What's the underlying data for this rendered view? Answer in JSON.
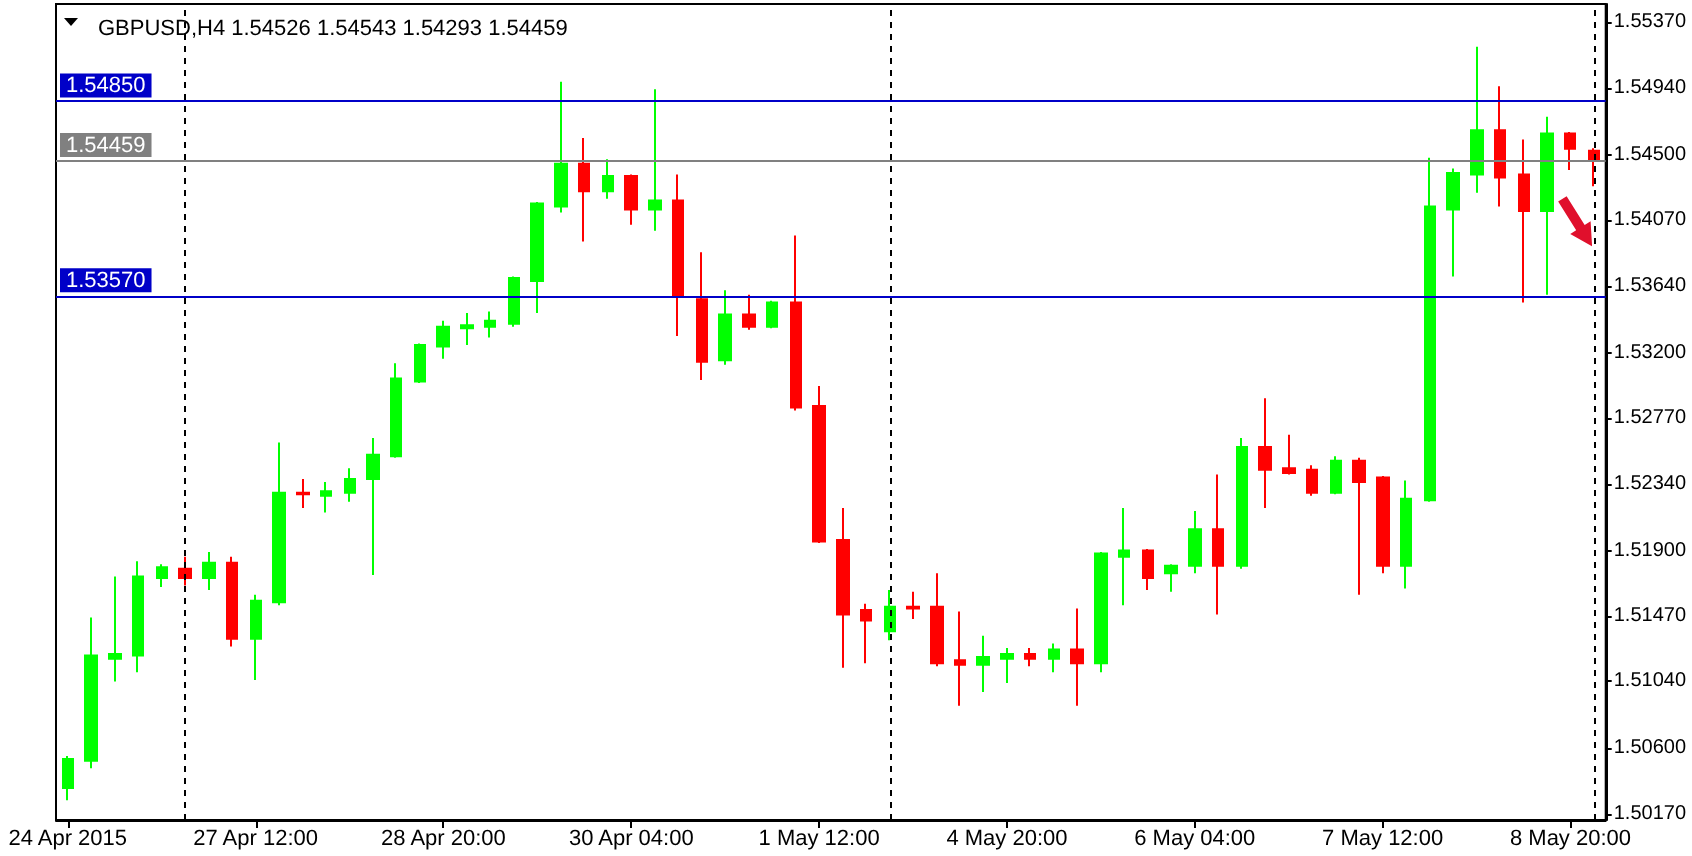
{
  "chart_data": {
    "type": "candlestick",
    "title": "GBPUSD,H4 1.54526 1.54543 1.54293 1.54459",
    "categories": [
      "24 Apr 2015",
      null,
      null,
      null,
      null,
      null,
      null,
      null,
      "27 Apr 12:00",
      null,
      null,
      null,
      null,
      null,
      null,
      null,
      "28 Apr 20:00",
      null,
      null,
      null,
      null,
      null,
      null,
      null,
      "30 Apr 04:00",
      null,
      null,
      null,
      null,
      null,
      null,
      null,
      "1 May 12:00",
      null,
      null,
      null,
      null,
      null,
      null,
      null,
      "4 May 20:00",
      null,
      null,
      null,
      null,
      null,
      null,
      null,
      "6 May 04:00",
      null,
      null,
      null,
      null,
      null,
      null,
      null,
      "7 May 12:00",
      null,
      null,
      null,
      null,
      null,
      null,
      null,
      "8 May 20:00",
      null
    ],
    "ohlc": [
      [
        1.5034,
        1.5055,
        1.5026,
        1.5053
      ],
      [
        1.5052,
        1.5146,
        1.5047,
        1.5121
      ],
      [
        1.5119,
        1.5173,
        1.5104,
        1.5122
      ],
      [
        1.5121,
        1.5183,
        1.511,
        1.5173
      ],
      [
        1.5172,
        1.5181,
        1.5166,
        1.5179
      ],
      [
        1.5178,
        1.5186,
        1.5167,
        1.5172
      ],
      [
        1.5172,
        1.5189,
        1.5164,
        1.5182
      ],
      [
        1.5182,
        1.5186,
        1.5127,
        1.5132
      ],
      [
        1.5132,
        1.5161,
        1.5105,
        1.5157
      ],
      [
        1.5156,
        1.5261,
        1.5154,
        1.5228
      ],
      [
        1.5228,
        1.5237,
        1.5218,
        1.5227
      ],
      [
        1.5226,
        1.5235,
        1.5215,
        1.5229
      ],
      [
        1.5228,
        1.5244,
        1.5222,
        1.5237
      ],
      [
        1.5237,
        1.5264,
        1.5174,
        1.5253
      ],
      [
        1.5252,
        1.5313,
        1.5251,
        1.5303
      ],
      [
        1.5301,
        1.5326,
        1.53,
        1.5325
      ],
      [
        1.5324,
        1.5341,
        1.5316,
        1.5337
      ],
      [
        1.5336,
        1.5346,
        1.5325,
        1.5338
      ],
      [
        1.5337,
        1.5347,
        1.533,
        1.5341
      ],
      [
        1.5339,
        1.537,
        1.5337,
        1.5369
      ],
      [
        1.5367,
        1.5419,
        1.5346,
        1.5418
      ],
      [
        1.5416,
        1.5498,
        1.5412,
        1.5444
      ],
      [
        1.5444,
        1.5461,
        1.5393,
        1.5426
      ],
      [
        1.5426,
        1.5447,
        1.5421,
        1.5436
      ],
      [
        1.5436,
        1.5437,
        1.5404,
        1.5414
      ],
      [
        1.5414,
        1.5493,
        1.54,
        1.542
      ],
      [
        1.542,
        1.5437,
        1.5331,
        1.5357
      ],
      [
        1.5355,
        1.5386,
        1.5302,
        1.5314
      ],
      [
        1.5315,
        1.5361,
        1.5312,
        1.5345
      ],
      [
        1.5345,
        1.5358,
        1.5335,
        1.5337
      ],
      [
        1.5337,
        1.5354,
        1.5336,
        1.5353
      ],
      [
        1.5353,
        1.5397,
        1.5282,
        1.5284
      ],
      [
        1.5285,
        1.5298,
        1.5195,
        1.5196
      ],
      [
        1.5197,
        1.5218,
        1.5113,
        1.5148
      ],
      [
        1.5151,
        1.5155,
        1.5116,
        1.5144
      ],
      [
        1.5137,
        1.5164,
        1.5131,
        1.5153
      ],
      [
        1.5153,
        1.5163,
        1.5145,
        1.5152
      ],
      [
        1.5153,
        1.5175,
        1.5114,
        1.5116
      ],
      [
        1.5118,
        1.515,
        1.5088,
        1.5115
      ],
      [
        1.5115,
        1.5134,
        1.5097,
        1.512
      ],
      [
        1.5119,
        1.5126,
        1.5103,
        1.5122
      ],
      [
        1.5122,
        1.5126,
        1.5114,
        1.5119
      ],
      [
        1.5119,
        1.5129,
        1.511,
        1.5125
      ],
      [
        1.5125,
        1.5152,
        1.5088,
        1.5116
      ],
      [
        1.5116,
        1.5189,
        1.511,
        1.5188
      ],
      [
        1.5186,
        1.5218,
        1.5154,
        1.519
      ],
      [
        1.519,
        1.5191,
        1.5164,
        1.5172
      ],
      [
        1.5175,
        1.5181,
        1.5163,
        1.518
      ],
      [
        1.518,
        1.5216,
        1.5175,
        1.5204
      ],
      [
        1.5204,
        1.524,
        1.5148,
        1.518
      ],
      [
        1.518,
        1.5264,
        1.5178,
        1.5258
      ],
      [
        1.5258,
        1.529,
        1.5218,
        1.5243
      ],
      [
        1.5244,
        1.5266,
        1.524,
        1.5241
      ],
      [
        1.5243,
        1.5246,
        1.5226,
        1.5228
      ],
      [
        1.5228,
        1.5252,
        1.5227,
        1.5249
      ],
      [
        1.5249,
        1.5251,
        1.5161,
        1.5235
      ],
      [
        1.5238,
        1.5239,
        1.5175,
        1.518
      ],
      [
        1.518,
        1.5236,
        1.5165,
        1.5224
      ],
      [
        1.5223,
        1.5448,
        1.5222,
        1.5416
      ],
      [
        1.5414,
        1.5441,
        1.537,
        1.5438
      ],
      [
        1.5437,
        1.5521,
        1.5425,
        1.5466
      ],
      [
        1.5466,
        1.5495,
        1.5416,
        1.5435
      ],
      [
        1.5437,
        1.546,
        1.5353,
        1.5413
      ],
      [
        1.5413,
        1.5475,
        1.5358,
        1.5464
      ],
      [
        1.5464,
        1.5465,
        1.544,
        1.5454
      ],
      [
        1.54526,
        1.54543,
        1.54293,
        1.54459
      ]
    ],
    "colors": [
      "#00ff00",
      "#00ff00",
      "#00ff00",
      "#00ff00",
      "#00ff00",
      "#ff0000",
      "#00ff00",
      "#ff0000",
      "#00ff00",
      "#00ff00",
      "#ff0000",
      "#00ff00",
      "#00ff00",
      "#00ff00",
      "#00ff00",
      "#00ff00",
      "#00ff00",
      "#00ff00",
      "#00ff00",
      "#00ff00",
      "#00ff00",
      "#00ff00",
      "#ff0000",
      "#00ff00",
      "#ff0000",
      "#00ff00",
      "#ff0000",
      "#ff0000",
      "#00ff00",
      "#ff0000",
      "#00ff00",
      "#ff0000",
      "#ff0000",
      "#ff0000",
      "#ff0000",
      "#00ff00",
      "#ff0000",
      "#ff0000",
      "#ff0000",
      "#00ff00",
      "#00ff00",
      "#ff0000",
      "#00ff00",
      "#ff0000",
      "#00ff00",
      "#00ff00",
      "#ff0000",
      "#00ff00",
      "#00ff00",
      "#ff0000",
      "#00ff00",
      "#ff0000",
      "#ff0000",
      "#ff0000",
      "#00ff00",
      "#ff0000",
      "#ff0000",
      "#00ff00",
      "#00ff00",
      "#00ff00",
      "#00ff00",
      "#ff0000",
      "#ff0000",
      "#00ff00",
      "#ff0000",
      "#ff0000"
    ],
    "ylim": [
      1.5013,
      1.5549
    ],
    "yticks": [
      {
        "value": 1.5017,
        "label": "1.50170"
      },
      {
        "value": 1.506,
        "label": "1.50600"
      },
      {
        "value": 1.5104,
        "label": "1.51040"
      },
      {
        "value": 1.5147,
        "label": "1.51470"
      },
      {
        "value": 1.519,
        "label": "1.51900"
      },
      {
        "value": 1.5234,
        "label": "1.52340"
      },
      {
        "value": 1.5277,
        "label": "1.52770"
      },
      {
        "value": 1.532,
        "label": "1.53200"
      },
      {
        "value": 1.5364,
        "label": "1.53640"
      },
      {
        "value": 1.5407,
        "label": "1.54070"
      },
      {
        "value": 1.545,
        "label": "1.54500"
      },
      {
        "value": 1.5494,
        "label": "1.54940"
      },
      {
        "value": 1.5537,
        "label": "1.55370"
      }
    ],
    "ref_lines": [
      {
        "axis": "y",
        "value": 1.5485,
        "label": "1.54850",
        "color": "#0000c8"
      },
      {
        "axis": "y",
        "value": 1.54459,
        "label": "1.54459",
        "color": "#808080"
      },
      {
        "axis": "y",
        "value": 1.5357,
        "label": "1.53570",
        "color": "#0000c8"
      }
    ],
    "grid": "x"
  }
}
